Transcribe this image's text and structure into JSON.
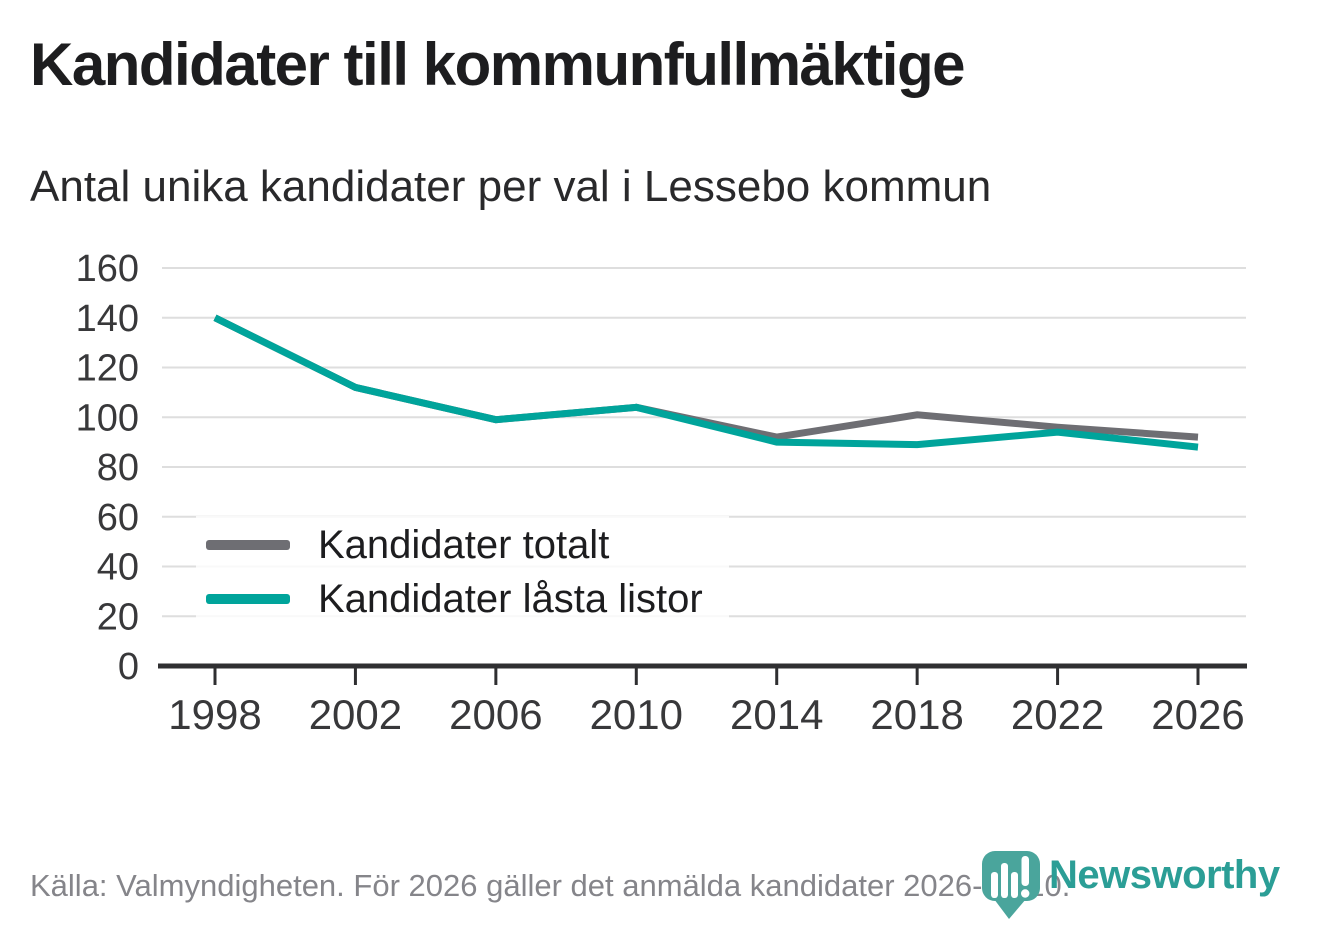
{
  "header": {
    "title": "Kandidater till kommunfullmäktige",
    "subtitle": "Antal unika kandidater per val i Lessebo kommun"
  },
  "chart_data": {
    "type": "line",
    "title": "Kandidater till kommunfullmäktige",
    "subtitle": "Antal unika kandidater per val i Lessebo kommun",
    "categories": [
      "1998",
      "2002",
      "2006",
      "2010",
      "2014",
      "2018",
      "2022",
      "2026"
    ],
    "series": [
      {
        "name": "Kandidater totalt",
        "color": "#6e6e73",
        "values": [
          140,
          112,
          99,
          104,
          92,
          101,
          96,
          92
        ]
      },
      {
        "name": "Kandidater låsta listor",
        "color": "#00a49b",
        "values": [
          140,
          112,
          99,
          104,
          90,
          89,
          94,
          88
        ]
      }
    ],
    "yticks": [
      0,
      20,
      40,
      60,
      80,
      100,
      120,
      140,
      160
    ],
    "ylim": [
      0,
      160
    ],
    "xlabel": "",
    "ylabel": "",
    "grid": "horizontal",
    "legend_position": "inside-bottom-left"
  },
  "footer": {
    "source_note": "Källa: Valmyndigheten. För 2026 gäller det anmälda kandidater 2026-04-10."
  },
  "logo": {
    "text": "Newsworthy",
    "text_color": "#2b9e96",
    "pin_color": "#4aa59c"
  },
  "colors": {
    "series_total": "#6e6e73",
    "series_locked": "#00a49b",
    "gridline": "#dedede",
    "axis": "#2f2f31",
    "tick_label": "#38383a",
    "title_text": "#1d1d1f",
    "footer_text": "#85858a"
  }
}
